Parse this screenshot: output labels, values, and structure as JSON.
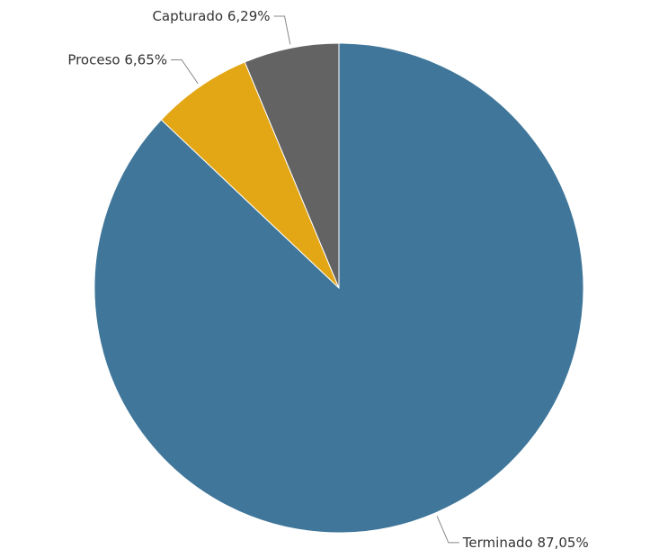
{
  "chart_data": {
    "type": "pie",
    "categories": [
      "Terminado",
      "Proceso",
      "Capturado"
    ],
    "values": [
      87.05,
      6.65,
      6.29
    ],
    "value_labels": [
      "87,05%",
      "6,65%",
      "6,29%"
    ],
    "colors": [
      "#3f7699",
      "#e3a614",
      "#636363"
    ]
  }
}
